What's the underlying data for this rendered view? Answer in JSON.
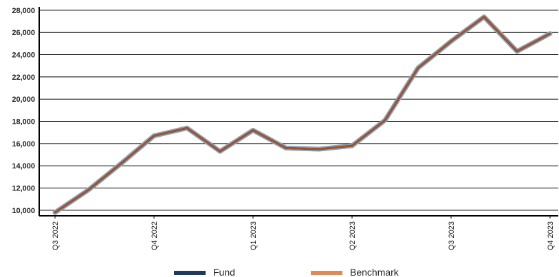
{
  "chart_data": {
    "type": "line",
    "title": "",
    "xlabel": "",
    "ylabel": "",
    "x_ticks": [
      "Q3 2022",
      "Q4 2022",
      "Q1 2023",
      "Q2 2023",
      "Q3 2023",
      "Q4 2023"
    ],
    "y_ticks": [
      10000,
      12000,
      14000,
      16000,
      18000,
      20000,
      22000,
      24000,
      26000,
      28000
    ],
    "y_tick_labels": [
      "10,000",
      "12,000",
      "14,000",
      "16,000",
      "18,000",
      "20,000",
      "22,000",
      "24,000",
      "26,000",
      "28,000"
    ],
    "ylim": [
      9500,
      28300
    ],
    "grid": true,
    "legend_position": "bottom",
    "series": [
      {
        "name": "Fund",
        "color": "#1f3a5f",
        "values": [
          9800,
          11800,
          14200,
          16700,
          17400,
          15300,
          17200,
          15600,
          15500,
          15800,
          18100,
          22800,
          25200,
          27400,
          24300,
          25900
        ]
      },
      {
        "name": "Benchmark",
        "color": "#e08a55",
        "values": [
          9800,
          11800,
          14200,
          16700,
          17400,
          15300,
          17200,
          15600,
          15500,
          15800,
          18100,
          22800,
          25200,
          27400,
          24300,
          25900
        ]
      }
    ]
  }
}
